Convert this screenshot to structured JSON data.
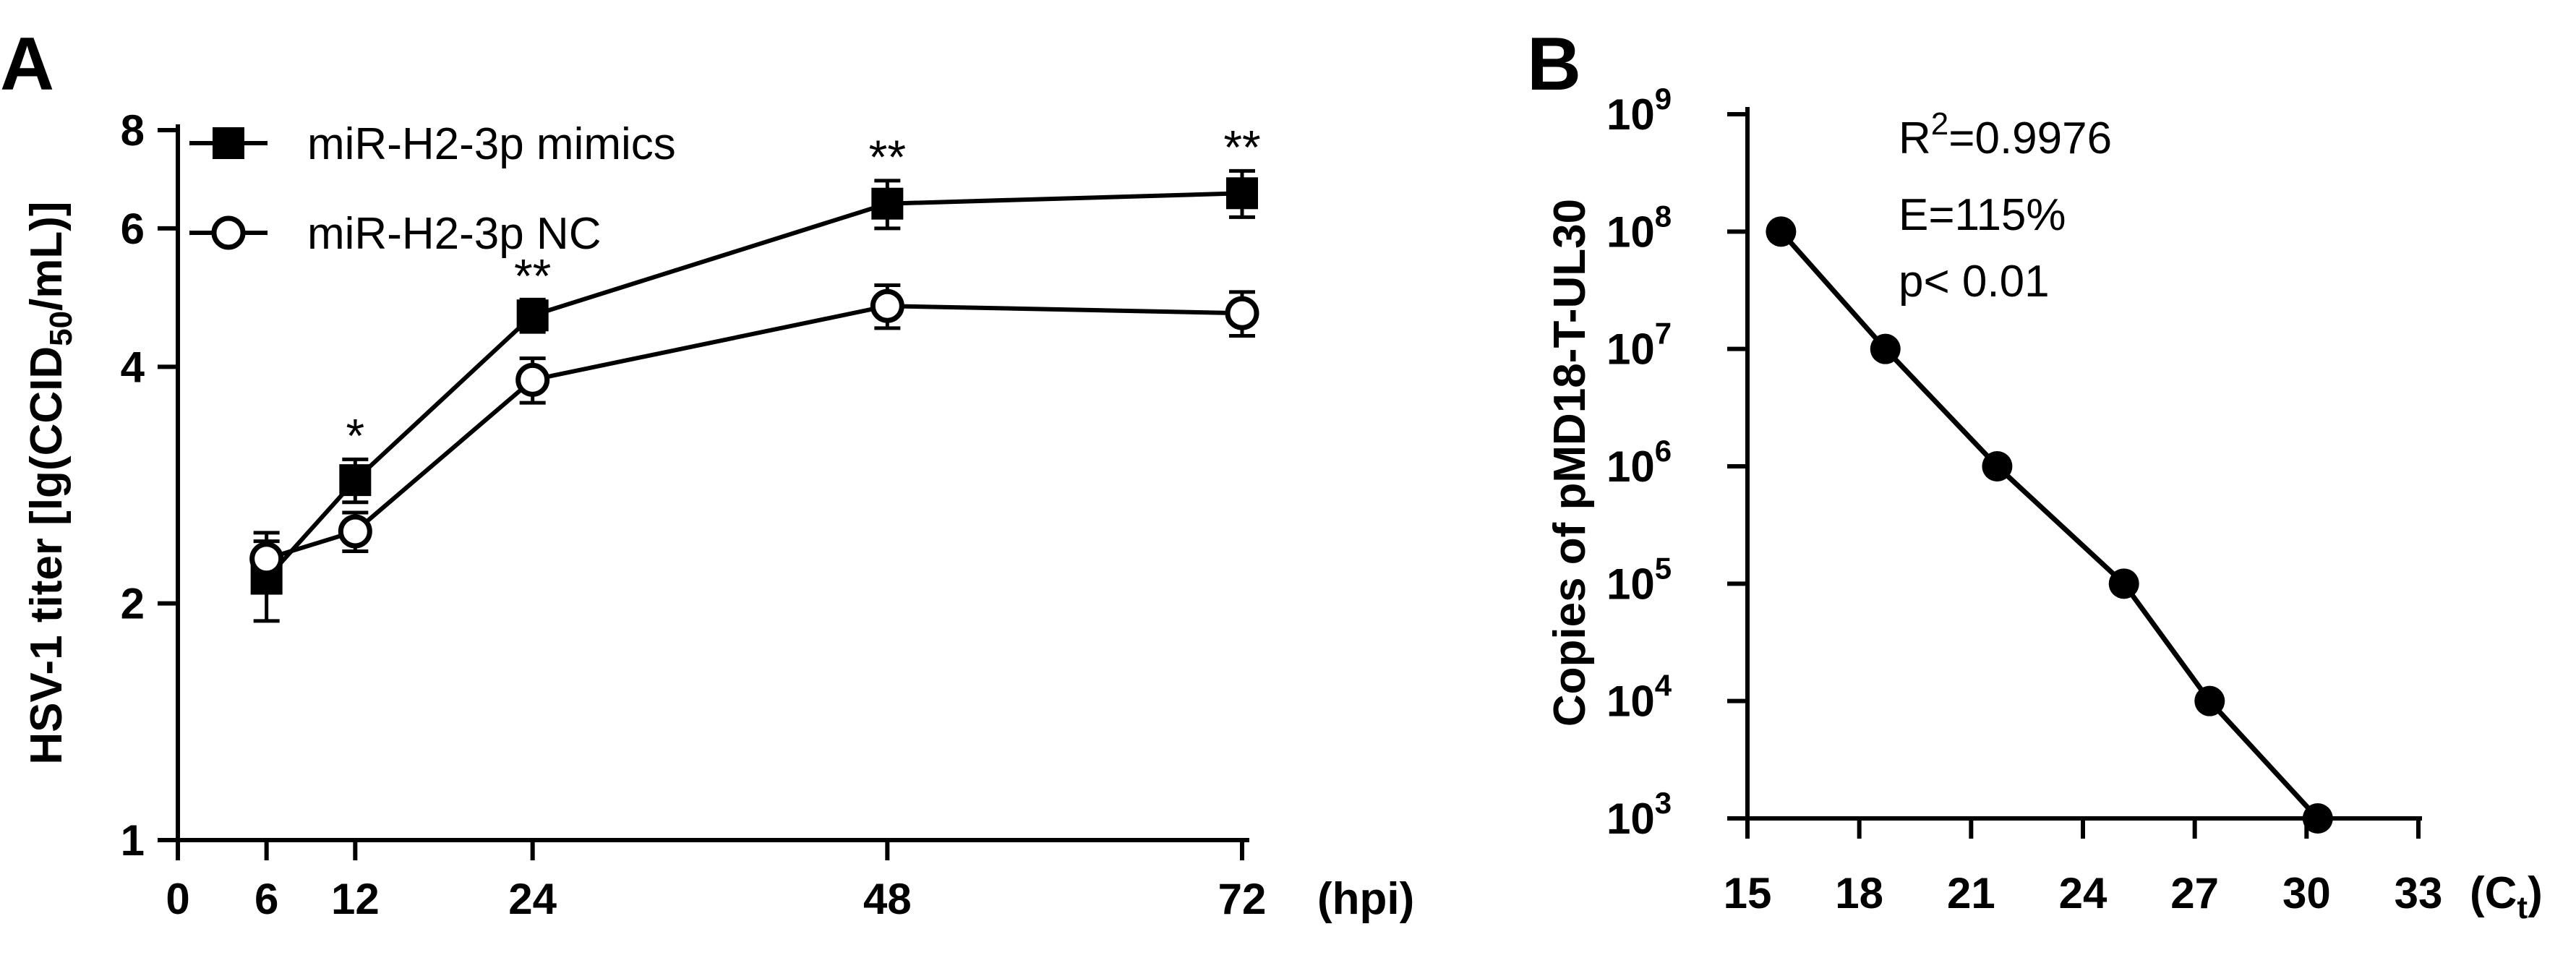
{
  "chart_data": [
    {
      "panel": "A",
      "type": "line",
      "title": "",
      "xlabel": "(hpi)",
      "ylabel_parts": {
        "pre": "HSV-1 titer [lg(CCID",
        "sub": "50",
        "post": "/mL)]"
      },
      "x_ticks": [
        "0",
        "6",
        "12",
        "24",
        "48",
        "72"
      ],
      "y_ticks": [
        "1",
        "2",
        "4",
        "6",
        "8"
      ],
      "y_scale": "log2",
      "xlim": [
        0,
        72
      ],
      "ylim": [
        1,
        8
      ],
      "x": [
        6,
        12,
        24,
        48,
        72
      ],
      "series": [
        {
          "name": "miR-H2-3p mimics",
          "marker": "filled-square",
          "values": [
            2.15,
            2.87,
            4.65,
            6.45,
            6.65
          ],
          "errors": [
            0.25,
            0.18,
            0.22,
            0.45,
            0.45
          ]
        },
        {
          "name": "miR-H2-3p NC",
          "marker": "open-circle",
          "values": [
            2.28,
            2.47,
            3.85,
            4.78,
            4.68
          ],
          "errors": [
            0.18,
            0.14,
            0.25,
            0.3,
            0.3
          ]
        }
      ],
      "significance": [
        {
          "x": 12,
          "label": "*"
        },
        {
          "x": 24,
          "label": "**"
        },
        {
          "x": 48,
          "label": "**"
        },
        {
          "x": 72,
          "label": "**"
        }
      ],
      "legend_position": "top-left"
    },
    {
      "panel": "B",
      "type": "line",
      "title": "",
      "xlabel_parts": {
        "pre": "(C",
        "sub": "t",
        "post": ")"
      },
      "ylabel": "Copies of pMD18-T-UL30",
      "x_ticks": [
        "15",
        "18",
        "21",
        "24",
        "27",
        "30",
        "33"
      ],
      "y_tick_exponents": [
        "3",
        "4",
        "5",
        "6",
        "7",
        "8",
        "9"
      ],
      "y_tick_base": "10",
      "y_scale": "log10",
      "xlim": [
        15,
        33
      ],
      "ylim_log10": [
        3,
        9
      ],
      "x": [
        15.9,
        18.7,
        21.7,
        25.1,
        27.4,
        30.3
      ],
      "y_log10": [
        8,
        7,
        6,
        5,
        4,
        3
      ],
      "annotations": {
        "r2_pre": "R",
        "r2_sup": "2",
        "r2_post": "=0.9976",
        "efficiency": "E=115%",
        "p_value": "p< 0.01"
      }
    }
  ]
}
